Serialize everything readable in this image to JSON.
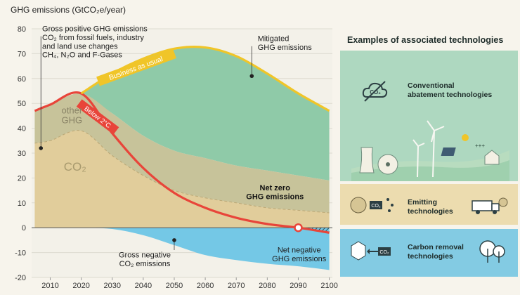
{
  "chart_data": {
    "type": "area",
    "title": "GHG emissions (GtCO₂e/year)",
    "x": [
      2005,
      2010,
      2020,
      2030,
      2040,
      2050,
      2060,
      2070,
      2080,
      2090,
      2100
    ],
    "xticks": [
      2010,
      2020,
      2030,
      2040,
      2050,
      2060,
      2070,
      2080,
      2090,
      2100
    ],
    "yticks": [
      -20,
      -10,
      0,
      10,
      20,
      30,
      40,
      50,
      60,
      70,
      80
    ],
    "xlim": [
      2004,
      2101
    ],
    "ylim": [
      -20,
      80
    ],
    "series": [
      {
        "name": "Business as usual",
        "values": [
          null,
          null,
          54,
          62,
          68,
          72,
          72.5,
          69,
          62,
          54,
          47
        ]
      },
      {
        "name": "Below 2°C",
        "values": [
          47,
          49.5,
          54,
          38,
          24,
          14,
          8,
          4,
          1.5,
          0,
          -2
        ]
      },
      {
        "name": "other GHG",
        "values": [
          47,
          49.5,
          54,
          46,
          37,
          31,
          28,
          25,
          23,
          21,
          19
        ]
      },
      {
        "name": "CO₂",
        "values": [
          34,
          35,
          39,
          29,
          21,
          15,
          12,
          10,
          8,
          7,
          6
        ]
      },
      {
        "values": [
          0,
          0,
          0,
          -0.5,
          -3,
          -7,
          -11,
          -13,
          -14.5,
          -15.5,
          -17
        ]
      }
    ],
    "annotations": [
      {
        "text": "Gross positive GHG emissions",
        "x": 2006.5,
        "y": 79
      },
      {
        "text": "CO₂ from fossil fuels, industry",
        "x": 2006.5,
        "y": 75.5
      },
      {
        "text": "and land use changes",
        "x": 2006.5,
        "y": 72
      },
      {
        "text": "CH₄, N₂O and F-Gases",
        "x": 2006.5,
        "y": 68.5
      },
      {
        "text": "Mitigated",
        "x": 2076,
        "y": 75
      },
      {
        "text": "GHG emissions",
        "x": 2076,
        "y": 71.5
      },
      {
        "text": "Net zero",
        "x": 2087,
        "y": 15
      },
      {
        "text": "GHG emissions",
        "x": 2087,
        "y": 11.5
      },
      {
        "text": "Gross negative",
        "x": 2050,
        "y": -12
      },
      {
        "text": "CO₂ emissions",
        "x": 2050,
        "y": -15.5
      },
      {
        "text": "Net negative",
        "x": 2093,
        "y": -10
      },
      {
        "text": "GHG emissions",
        "x": 2093,
        "y": -13.5
      }
    ],
    "band_labels": [
      {
        "text": "other",
        "x": 2017,
        "y": 46
      },
      {
        "text": "GHG",
        "x": 2017,
        "y": 42
      },
      {
        "text": "CO₂",
        "x": 2018,
        "y": 23
      }
    ]
  },
  "colors": {
    "mitigated": "#8fcaa8",
    "other_ghg": "#c7c39a",
    "co2": "#e1cd9b",
    "negative": "#74c8e6",
    "below2": "#e8453a",
    "bau": "#f0c528",
    "axis_text": "#333333"
  },
  "panel": {
    "title": "Examples of associated technologies",
    "conventional": "Conventional\nabatement technologies",
    "emitting": "Emitting\ntechnologies",
    "removal": "Carbon removal\ntechnologies",
    "icon_co2": "CO₂",
    "icon_plus": "+++"
  },
  "icons": [
    "co2-cloud-icon",
    "landscape-icon",
    "wind-turbine-icon",
    "solar-panel-icon",
    "nuclear-icon",
    "house-icon",
    "co2-emission-icon",
    "truck-icon",
    "co2-capture-icon",
    "tree-icon"
  ]
}
